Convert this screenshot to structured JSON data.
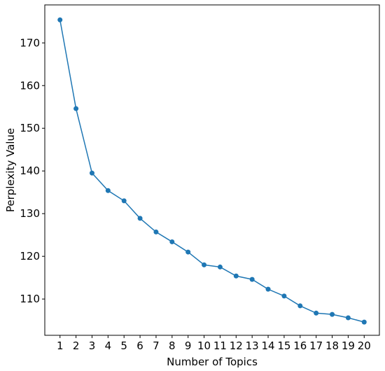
{
  "chart_data": {
    "type": "line",
    "xlabel": "Number of Topics",
    "ylabel": "Perplexity Value",
    "x": [
      1,
      2,
      3,
      4,
      5,
      6,
      7,
      8,
      9,
      10,
      11,
      12,
      13,
      14,
      15,
      16,
      17,
      18,
      19,
      20
    ],
    "series": [
      {
        "color": "#1f77b4",
        "values": [
          175.4,
          154.6,
          139.5,
          135.4,
          133.0,
          128.9,
          125.7,
          123.4,
          121.0,
          118.0,
          117.5,
          115.4,
          114.6,
          112.3,
          110.7,
          108.4,
          106.7,
          106.4,
          105.6,
          104.6
        ]
      }
    ],
    "xlim": [
      0.05,
      20.95
    ],
    "ylim": [
      101.5,
      178.9
    ],
    "xticks": [
      1,
      2,
      3,
      4,
      5,
      6,
      7,
      8,
      9,
      10,
      11,
      12,
      13,
      14,
      15,
      16,
      17,
      18,
      19,
      20
    ],
    "yticks": [
      110,
      120,
      130,
      140,
      150,
      160,
      170
    ],
    "markers": true
  }
}
